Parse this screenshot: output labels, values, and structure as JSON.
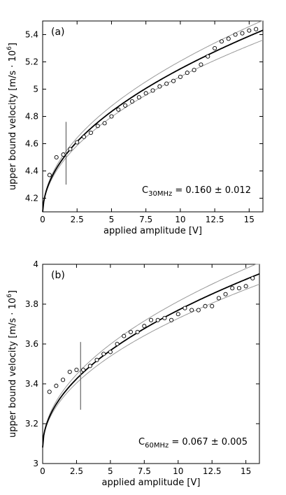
{
  "chart_data": [
    {
      "panel_label": "(a)",
      "type": "scatter",
      "xlabel": "applied amplitude [V]",
      "ylabel_main": "upper bound velocity [m/s · 10",
      "ylabel_sup": "6",
      "ylabel_tail": "]",
      "xlim": [
        0,
        16
      ],
      "ylim": [
        4.1,
        5.5
      ],
      "xticks": [
        0,
        2.5,
        5,
        7.5,
        10,
        12.5,
        15
      ],
      "xtick_labels": [
        "0",
        "2.5",
        "5",
        "7.5",
        "10",
        "12.5",
        "15"
      ],
      "yticks": [
        4.2,
        4.4,
        4.6,
        4.8,
        5.0,
        5.2,
        5.4
      ],
      "ytick_labels": [
        "4.2",
        "4.4",
        "4.6",
        "4.8",
        "5",
        "5.2",
        "5.4"
      ],
      "annotation": {
        "c_main": "C",
        "c_sub": "30MHz",
        "c_value": " = 0.160 ± 0.012"
      },
      "marker_line_x": 1.7,
      "marker_line_y": [
        4.3,
        4.76
      ],
      "fit": {
        "offset": 4.08,
        "amp": 0.338,
        "amp_low": 0.32,
        "amp_high": 0.356,
        "exponent": 0.5
      },
      "series": [
        {
          "x": [
            0.5,
            1.0,
            1.5,
            2.0,
            2.5,
            3.0,
            3.5,
            4.0,
            4.5,
            5.0,
            5.5,
            6.0,
            6.5,
            7.0,
            7.5,
            8.0,
            8.5,
            9.0,
            9.5,
            10.0,
            10.5,
            11.0,
            11.5,
            12.0,
            12.5,
            13.0,
            13.5,
            14.0,
            14.5,
            15.0,
            15.5
          ],
          "y": [
            4.37,
            4.5,
            4.52,
            4.56,
            4.61,
            4.65,
            4.68,
            4.73,
            4.75,
            4.8,
            4.85,
            4.88,
            4.91,
            4.94,
            4.97,
            4.99,
            5.02,
            5.04,
            5.06,
            5.09,
            5.12,
            5.14,
            5.18,
            5.24,
            5.3,
            5.35,
            5.37,
            5.4,
            5.41,
            5.43,
            5.44
          ]
        }
      ]
    },
    {
      "panel_label": "(b)",
      "type": "scatter",
      "xlabel": "applied amplitude [V]",
      "ylabel_main": "upper bound velocity [m/s · 10",
      "ylabel_sup": "6",
      "ylabel_tail": "]",
      "xlim": [
        0,
        16
      ],
      "ylim": [
        3.0,
        4.0
      ],
      "xticks": [
        0,
        2.5,
        5,
        7.5,
        10,
        12.5,
        15
      ],
      "xtick_labels": [
        "0",
        "2.5",
        "5",
        "7.5",
        "10",
        "12.5",
        "15"
      ],
      "yticks": [
        3.0,
        3.2,
        3.4,
        3.6,
        3.8,
        4.0
      ],
      "ytick_labels": [
        "3",
        "3.2",
        "3.4",
        "3.6",
        "3.8",
        "4"
      ],
      "annotation": {
        "c_main": "C",
        "c_sub": "60MHz",
        "c_value": " = 0.067 ± 0.005"
      },
      "marker_line_x": 2.8,
      "marker_line_y": [
        3.27,
        3.61
      ],
      "fit": {
        "offset": 3.08,
        "amp": 0.218,
        "amp_low": 0.205,
        "amp_high": 0.232,
        "exponent": 0.5
      },
      "series": [
        {
          "x": [
            0.5,
            1.0,
            1.5,
            2.0,
            2.5,
            3.0,
            3.5,
            4.0,
            4.5,
            5.0,
            5.5,
            6.0,
            6.5,
            7.0,
            7.5,
            8.0,
            8.5,
            9.0,
            9.5,
            10.0,
            10.5,
            11.0,
            11.5,
            12.0,
            12.5,
            13.0,
            13.5,
            14.0,
            14.5,
            15.0,
            15.5
          ],
          "y": [
            3.36,
            3.39,
            3.42,
            3.46,
            3.47,
            3.47,
            3.49,
            3.52,
            3.55,
            3.56,
            3.6,
            3.64,
            3.66,
            3.66,
            3.69,
            3.72,
            3.72,
            3.73,
            3.72,
            3.75,
            3.78,
            3.77,
            3.77,
            3.79,
            3.79,
            3.83,
            3.85,
            3.88,
            3.88,
            3.89,
            3.93
          ]
        }
      ]
    }
  ]
}
